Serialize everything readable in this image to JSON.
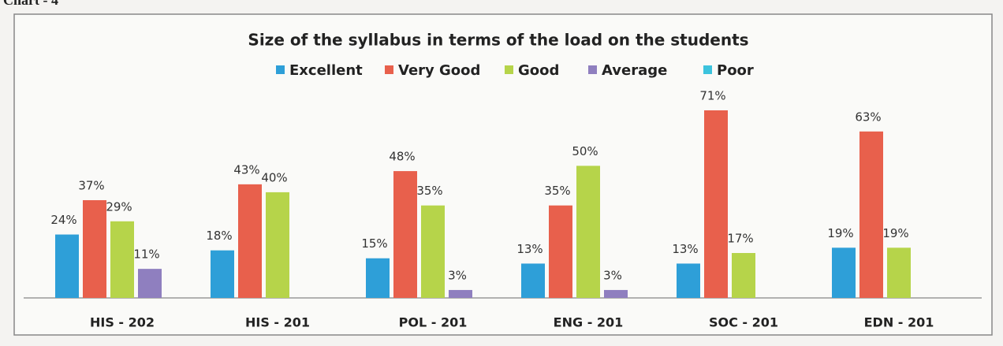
{
  "chart_data": {
    "type": "bar",
    "annotation": "Chart - 4",
    "title": "Size of the syllabus in terms of the load on the students",
    "categories": [
      "HIS - 202",
      "HIS - 201",
      "POL - 201",
      "ENG - 201",
      "SOC - 201",
      "EDN - 201"
    ],
    "series": [
      {
        "name": "Excellent",
        "color": "#2e9fd8",
        "values": [
          24,
          18,
          15,
          13,
          13,
          19
        ],
        "value_labels": [
          "24%",
          "18%",
          "15%",
          "13%",
          "13%",
          "19%"
        ]
      },
      {
        "name": "Very Good",
        "color": "#e8604c",
        "values": [
          37,
          43,
          48,
          35,
          71,
          63
        ],
        "value_labels": [
          "37%",
          "43%",
          "48%",
          "35%",
          "71%",
          "63%"
        ]
      },
      {
        "name": "Good",
        "color": "#b6d44a",
        "values": [
          29,
          40,
          35,
          50,
          17,
          19
        ],
        "value_labels": [
          "29%",
          "40%",
          "35%",
          "50%",
          "17%",
          "19%"
        ]
      },
      {
        "name": "Average",
        "color": "#8f7fbf",
        "values": [
          11,
          null,
          3,
          3,
          null,
          null
        ],
        "value_labels": [
          "11%",
          null,
          "3%",
          "3%",
          null,
          null
        ]
      },
      {
        "name": "Poor",
        "color": "#3cc3dd",
        "values": [
          null,
          null,
          null,
          null,
          null,
          null
        ],
        "value_labels": [
          null,
          null,
          null,
          null,
          null,
          null
        ]
      }
    ],
    "legend": "top",
    "grid": false
  }
}
